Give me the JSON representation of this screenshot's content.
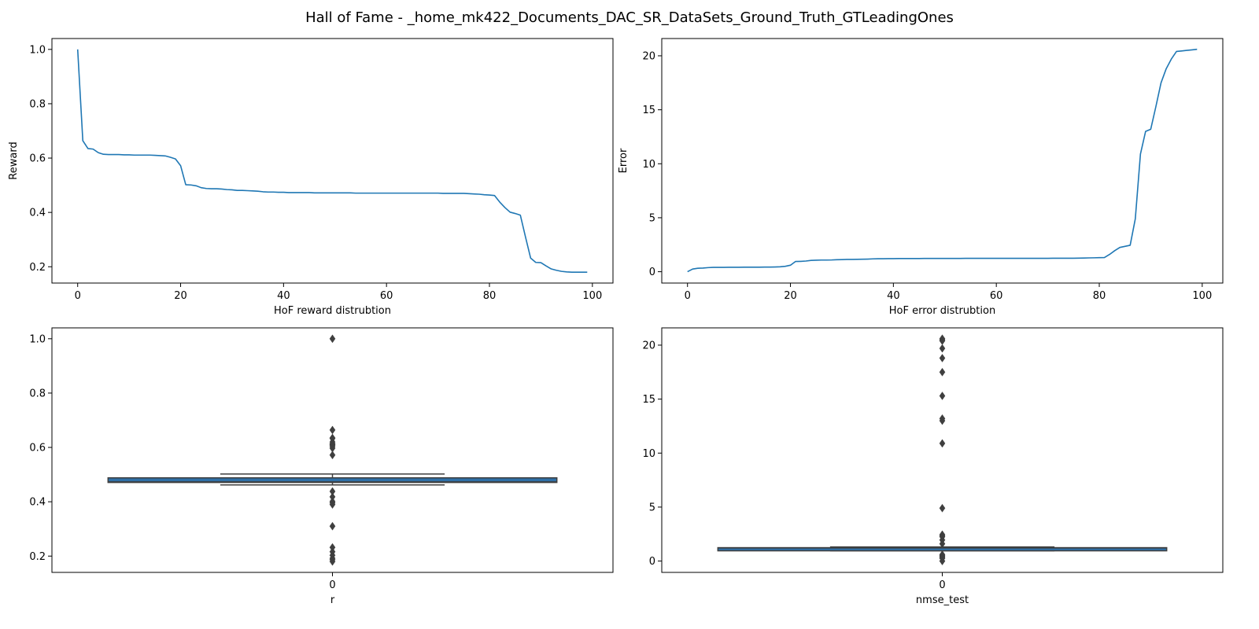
{
  "figure_title": "Hall of Fame - _home_mk422_Documents_DAC_SR_DataSets_Ground_Truth_GTLeadingOnes",
  "colors": {
    "line": "#1f77b4",
    "box_fill": "#2f70a7",
    "box_edge": "#3f3f3f",
    "flier": "#3f3f3f"
  },
  "chart_data": [
    {
      "type": "line",
      "xlabel": "HoF reward distrubtion",
      "ylabel": "Reward",
      "xlim": [
        -5,
        104
      ],
      "ylim": [
        0.14,
        1.04
      ],
      "xticks": [
        0,
        20,
        40,
        60,
        80,
        100
      ],
      "yticks": [
        0.2,
        0.4,
        0.6,
        0.8,
        1.0
      ],
      "ytick_labels": [
        "0.2",
        "0.4",
        "0.6",
        "0.8",
        "1.0"
      ],
      "grid": false,
      "x": [
        0,
        1,
        2,
        3,
        4,
        5,
        6,
        7,
        8,
        9,
        10,
        11,
        12,
        13,
        14,
        15,
        16,
        17,
        18,
        19,
        20,
        21,
        22,
        23,
        24,
        25,
        26,
        27,
        28,
        29,
        30,
        31,
        32,
        33,
        34,
        35,
        36,
        37,
        38,
        39,
        40,
        41,
        42,
        43,
        44,
        45,
        46,
        47,
        48,
        49,
        50,
        51,
        52,
        53,
        54,
        55,
        56,
        57,
        58,
        59,
        60,
        61,
        62,
        63,
        64,
        65,
        66,
        67,
        68,
        69,
        70,
        71,
        72,
        73,
        74,
        75,
        76,
        77,
        78,
        79,
        80,
        81,
        82,
        83,
        84,
        85,
        86,
        87,
        88,
        89,
        90,
        91,
        92,
        93,
        94,
        95,
        96,
        97,
        98,
        99
      ],
      "y": [
        1.0,
        0.664,
        0.635,
        0.633,
        0.62,
        0.614,
        0.613,
        0.613,
        0.613,
        0.612,
        0.612,
        0.611,
        0.611,
        0.611,
        0.611,
        0.61,
        0.609,
        0.608,
        0.603,
        0.597,
        0.572,
        0.502,
        0.501,
        0.498,
        0.491,
        0.488,
        0.487,
        0.487,
        0.486,
        0.484,
        0.483,
        0.481,
        0.481,
        0.48,
        0.479,
        0.478,
        0.476,
        0.475,
        0.475,
        0.474,
        0.474,
        0.473,
        0.473,
        0.473,
        0.473,
        0.473,
        0.472,
        0.472,
        0.472,
        0.472,
        0.472,
        0.472,
        0.472,
        0.472,
        0.471,
        0.471,
        0.471,
        0.471,
        0.471,
        0.471,
        0.471,
        0.471,
        0.471,
        0.471,
        0.471,
        0.471,
        0.471,
        0.471,
        0.471,
        0.471,
        0.471,
        0.47,
        0.47,
        0.47,
        0.47,
        0.47,
        0.469,
        0.468,
        0.467,
        0.465,
        0.464,
        0.462,
        0.438,
        0.418,
        0.401,
        0.396,
        0.39,
        0.31,
        0.232,
        0.216,
        0.215,
        0.203,
        0.192,
        0.187,
        0.183,
        0.181,
        0.18,
        0.18,
        0.18,
        0.18
      ]
    },
    {
      "type": "line",
      "xlabel": "HoF error distrubtion",
      "ylabel": "Error",
      "xlim": [
        -5,
        104
      ],
      "ylim": [
        -1.05,
        21.6
      ],
      "xticks": [
        0,
        20,
        40,
        60,
        80,
        100
      ],
      "yticks": [
        0,
        5,
        10,
        15,
        20
      ],
      "ytick_labels": [
        "0",
        "5",
        "10",
        "15",
        "20"
      ],
      "grid": false,
      "x": [
        0,
        1,
        2,
        3,
        4,
        5,
        6,
        7,
        8,
        9,
        10,
        11,
        12,
        13,
        14,
        15,
        16,
        17,
        18,
        19,
        20,
        21,
        22,
        23,
        24,
        25,
        26,
        27,
        28,
        29,
        30,
        31,
        32,
        33,
        34,
        35,
        36,
        37,
        38,
        39,
        40,
        41,
        42,
        43,
        44,
        45,
        46,
        47,
        48,
        49,
        50,
        51,
        52,
        53,
        54,
        55,
        56,
        57,
        58,
        59,
        60,
        61,
        62,
        63,
        64,
        65,
        66,
        67,
        68,
        69,
        70,
        71,
        72,
        73,
        74,
        75,
        76,
        77,
        78,
        79,
        80,
        81,
        82,
        83,
        84,
        85,
        86,
        87,
        88,
        89,
        90,
        91,
        92,
        93,
        94,
        95,
        96,
        97,
        98,
        99
      ],
      "y": [
        0.0,
        0.25,
        0.32,
        0.34,
        0.38,
        0.4,
        0.4,
        0.4,
        0.41,
        0.41,
        0.41,
        0.42,
        0.42,
        0.42,
        0.42,
        0.43,
        0.43,
        0.44,
        0.46,
        0.5,
        0.6,
        0.95,
        0.96,
        0.99,
        1.05,
        1.07,
        1.08,
        1.08,
        1.09,
        1.11,
        1.12,
        1.14,
        1.14,
        1.15,
        1.16,
        1.17,
        1.19,
        1.2,
        1.2,
        1.21,
        1.21,
        1.22,
        1.22,
        1.22,
        1.22,
        1.22,
        1.23,
        1.23,
        1.23,
        1.23,
        1.23,
        1.23,
        1.23,
        1.23,
        1.24,
        1.24,
        1.24,
        1.24,
        1.24,
        1.24,
        1.24,
        1.24,
        1.24,
        1.24,
        1.24,
        1.24,
        1.24,
        1.24,
        1.24,
        1.24,
        1.24,
        1.25,
        1.25,
        1.25,
        1.25,
        1.25,
        1.26,
        1.27,
        1.28,
        1.29,
        1.3,
        1.31,
        1.6,
        1.95,
        2.25,
        2.35,
        2.45,
        4.9,
        10.9,
        13.0,
        13.2,
        15.3,
        17.5,
        18.8,
        19.7,
        20.4,
        20.45,
        20.5,
        20.55,
        20.6
      ]
    },
    {
      "type": "box",
      "xlabel": "r",
      "ylabel": "",
      "xticks": [
        "0"
      ],
      "ylim": [
        0.14,
        1.04
      ],
      "yticks": [
        0.2,
        0.4,
        0.6,
        0.8,
        1.0
      ],
      "ytick_labels": [
        "0.2",
        "0.4",
        "0.6",
        "0.8",
        "1.0"
      ],
      "grid": false,
      "stats": {
        "q1": 0.471,
        "median": 0.473,
        "q3": 0.488,
        "whisker_low": 0.462,
        "whisker_high": 0.502
      },
      "fliers": [
        1.0,
        0.664,
        0.635,
        0.633,
        0.62,
        0.614,
        0.613,
        0.611,
        0.608,
        0.603,
        0.597,
        0.572,
        0.438,
        0.418,
        0.401,
        0.396,
        0.39,
        0.31,
        0.232,
        0.216,
        0.203,
        0.192,
        0.187,
        0.18
      ]
    },
    {
      "type": "box",
      "xlabel": "nmse_test",
      "ylabel": "",
      "xticks": [
        "0"
      ],
      "ylim": [
        -1.05,
        21.6
      ],
      "yticks": [
        0,
        5,
        10,
        15,
        20
      ],
      "ytick_labels": [
        "0",
        "5",
        "10",
        "15",
        "20"
      ],
      "grid": false,
      "stats": {
        "q1": 1.12,
        "median": 1.22,
        "q3": 1.24,
        "whisker_low": 0.95,
        "whisker_high": 1.31
      },
      "fliers": [
        20.6,
        20.5,
        20.4,
        19.7,
        18.8,
        17.5,
        15.3,
        13.2,
        13.0,
        10.9,
        4.9,
        2.45,
        2.35,
        2.25,
        1.95,
        1.6,
        0.6,
        0.5,
        0.44,
        0.4,
        0.3,
        0.25,
        0.0
      ]
    }
  ]
}
